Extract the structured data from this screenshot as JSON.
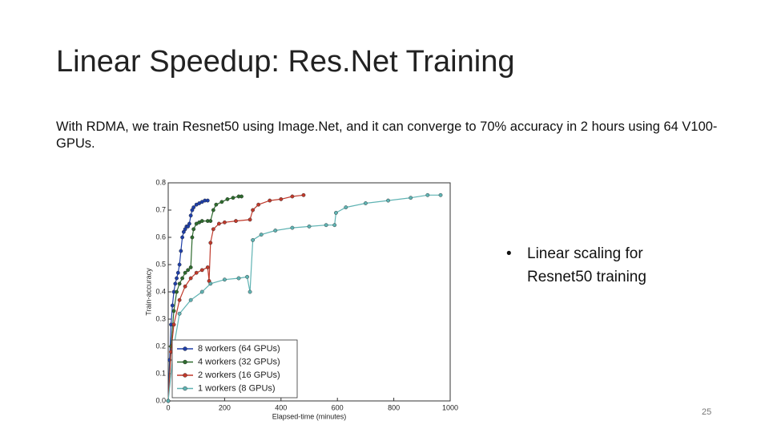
{
  "title": "Linear Speedup: Res.Net Training",
  "body": "With RDMA, we train Resnet50 using Image.Net, and it can converge to 70% accuracy in 2 hours using 64 V100-GPUs.",
  "bullet": "Linear scaling for Resnet50 training",
  "page_number": "25",
  "chart_data": {
    "type": "line",
    "xlabel": "Elapsed-time (minutes)",
    "ylabel": "Train-accuracy",
    "xlim": [
      0,
      1000
    ],
    "xticks": [
      0,
      200,
      400,
      600,
      800,
      1000
    ],
    "ylim": [
      0,
      0.8
    ],
    "yticks": [
      {
        "value": 0,
        "label": "0.0"
      },
      0.1,
      0.2,
      0.3,
      0.4,
      0.5,
      0.6,
      0.7,
      0.8
    ],
    "legend": "lower left",
    "series": [
      {
        "name": "8 workers (64 GPUs)",
        "color": "#1f3fa8",
        "x": [
          0,
          5,
          10,
          15,
          20,
          25,
          30,
          35,
          40,
          45,
          50,
          55,
          60,
          65,
          70,
          75,
          80,
          85,
          90,
          100,
          110,
          120,
          130,
          140
        ],
        "values": [
          0,
          0.15,
          0.28,
          0.35,
          0.4,
          0.43,
          0.45,
          0.47,
          0.5,
          0.55,
          0.6,
          0.62,
          0.63,
          0.64,
          0.64,
          0.65,
          0.68,
          0.7,
          0.71,
          0.72,
          0.725,
          0.73,
          0.735,
          0.735
        ]
      },
      {
        "name": "4 workers (32 GPUs)",
        "color": "#2e6b2e",
        "x": [
          0,
          10,
          20,
          30,
          40,
          50,
          60,
          70,
          80,
          85,
          90,
          100,
          110,
          120,
          140,
          150,
          160,
          170,
          190,
          210,
          230,
          250,
          260
        ],
        "values": [
          0,
          0.2,
          0.33,
          0.4,
          0.43,
          0.45,
          0.47,
          0.48,
          0.49,
          0.6,
          0.63,
          0.65,
          0.655,
          0.66,
          0.66,
          0.66,
          0.7,
          0.72,
          0.73,
          0.74,
          0.745,
          0.75,
          0.75
        ]
      },
      {
        "name": "2 workers (16 GPUs)",
        "color": "#c0392b",
        "x": [
          0,
          10,
          20,
          40,
          60,
          80,
          100,
          120,
          140,
          145,
          150,
          160,
          180,
          200,
          240,
          290,
          300,
          320,
          360,
          400,
          440,
          480
        ],
        "values": [
          0,
          0.18,
          0.28,
          0.37,
          0.42,
          0.45,
          0.47,
          0.48,
          0.49,
          0.44,
          0.58,
          0.63,
          0.65,
          0.655,
          0.66,
          0.665,
          0.7,
          0.72,
          0.735,
          0.74,
          0.75,
          0.755
        ]
      },
      {
        "name": "1 workers (8 GPUs)",
        "color": "#5fb3b3",
        "x": [
          0,
          20,
          40,
          80,
          120,
          150,
          200,
          250,
          280,
          290,
          300,
          330,
          380,
          440,
          500,
          560,
          590,
          595,
          630,
          700,
          780,
          860,
          920,
          966
        ],
        "values": [
          0,
          0.2,
          0.32,
          0.37,
          0.4,
          0.43,
          0.445,
          0.45,
          0.455,
          0.4,
          0.59,
          0.61,
          0.625,
          0.635,
          0.64,
          0.645,
          0.645,
          0.69,
          0.71,
          0.725,
          0.735,
          0.745,
          0.755,
          0.755
        ]
      }
    ]
  }
}
